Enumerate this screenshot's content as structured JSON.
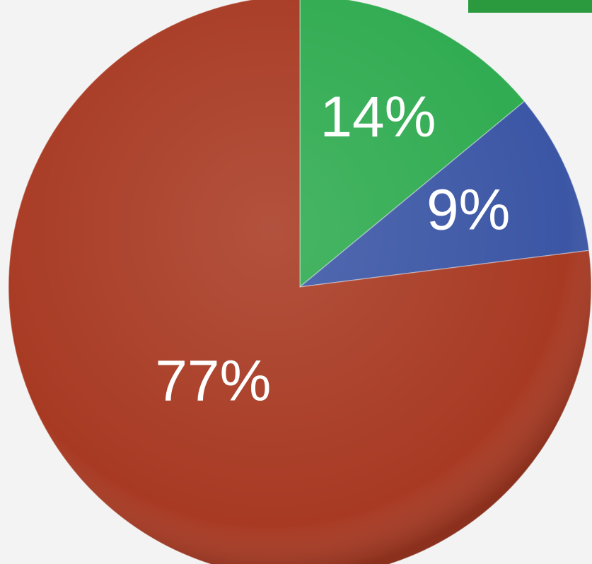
{
  "chart_data": {
    "type": "pie",
    "values": [
      14,
      9,
      77
    ],
    "value_labels": [
      "14%",
      "9%",
      "77%"
    ],
    "colors": [
      "#2fab50",
      "#3b56a5",
      "#a83a23"
    ]
  }
}
